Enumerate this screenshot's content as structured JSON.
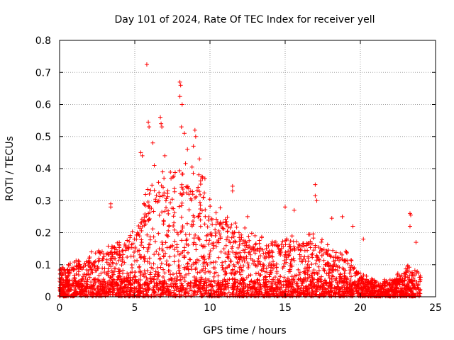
{
  "chart_data": {
    "type": "scatter",
    "title": "Day 101 of 2024, Rate Of TEC Index for receiver yell",
    "xlabel": "GPS time / hours",
    "ylabel": "ROTI / TECUs",
    "xlim": [
      0,
      25
    ],
    "ylim": [
      0,
      0.8
    ],
    "xticks": [
      0,
      5,
      10,
      15,
      20,
      25
    ],
    "yticks": [
      0,
      0.1,
      0.2,
      0.3,
      0.4,
      0.5,
      0.6,
      0.7,
      0.8
    ],
    "xtick_labels": [
      "0",
      "5",
      "10",
      "15",
      "20",
      "25"
    ],
    "ytick_labels": [
      "0",
      "0.1",
      "0.2",
      "0.3",
      "0.4",
      "0.5",
      "0.6",
      "0.7",
      "0.8"
    ],
    "grid": true,
    "marker": "+",
    "color": "#ff0000",
    "density_profile": {
      "x": [
        0,
        1,
        2,
        3,
        4,
        5,
        5.5,
        6,
        7,
        8,
        9,
        10,
        11,
        12,
        13,
        14,
        15,
        16,
        17,
        18,
        19,
        20,
        21,
        22,
        23,
        24
      ],
      "typical_upper": [
        0.07,
        0.09,
        0.11,
        0.13,
        0.14,
        0.17,
        0.24,
        0.28,
        0.32,
        0.34,
        0.33,
        0.28,
        0.22,
        0.18,
        0.16,
        0.14,
        0.15,
        0.16,
        0.16,
        0.13,
        0.12,
        0.06,
        0.04,
        0.04,
        0.08,
        0.07
      ]
    },
    "series": [
      {
        "name": "ROTI",
        "outliers": [
          {
            "x": 3.4,
            "y": 0.29
          },
          {
            "x": 3.4,
            "y": 0.28
          },
          {
            "x": 5.4,
            "y": 0.45
          },
          {
            "x": 5.5,
            "y": 0.44
          },
          {
            "x": 5.8,
            "y": 0.725
          },
          {
            "x": 5.9,
            "y": 0.545
          },
          {
            "x": 5.95,
            "y": 0.53
          },
          {
            "x": 6.2,
            "y": 0.48
          },
          {
            "x": 6.3,
            "y": 0.41
          },
          {
            "x": 6.7,
            "y": 0.56
          },
          {
            "x": 6.75,
            "y": 0.54
          },
          {
            "x": 6.8,
            "y": 0.53
          },
          {
            "x": 7.0,
            "y": 0.44
          },
          {
            "x": 8.0,
            "y": 0.67
          },
          {
            "x": 8.05,
            "y": 0.66
          },
          {
            "x": 8.0,
            "y": 0.625
          },
          {
            "x": 8.15,
            "y": 0.6
          },
          {
            "x": 8.1,
            "y": 0.53
          },
          {
            "x": 8.3,
            "y": 0.51
          },
          {
            "x": 8.5,
            "y": 0.46
          },
          {
            "x": 9.0,
            "y": 0.52
          },
          {
            "x": 9.05,
            "y": 0.5
          },
          {
            "x": 8.9,
            "y": 0.47
          },
          {
            "x": 9.3,
            "y": 0.43
          },
          {
            "x": 11.5,
            "y": 0.345
          },
          {
            "x": 11.5,
            "y": 0.33
          },
          {
            "x": 12.5,
            "y": 0.25
          },
          {
            "x": 15.0,
            "y": 0.28
          },
          {
            "x": 15.6,
            "y": 0.27
          },
          {
            "x": 17.0,
            "y": 0.35
          },
          {
            "x": 17.0,
            "y": 0.315
          },
          {
            "x": 17.1,
            "y": 0.3
          },
          {
            "x": 18.1,
            "y": 0.245
          },
          {
            "x": 18.8,
            "y": 0.25
          },
          {
            "x": 19.5,
            "y": 0.22
          },
          {
            "x": 20.2,
            "y": 0.18
          },
          {
            "x": 23.3,
            "y": 0.26
          },
          {
            "x": 23.35,
            "y": 0.255
          },
          {
            "x": 23.3,
            "y": 0.22
          },
          {
            "x": 23.7,
            "y": 0.17
          }
        ]
      }
    ]
  }
}
